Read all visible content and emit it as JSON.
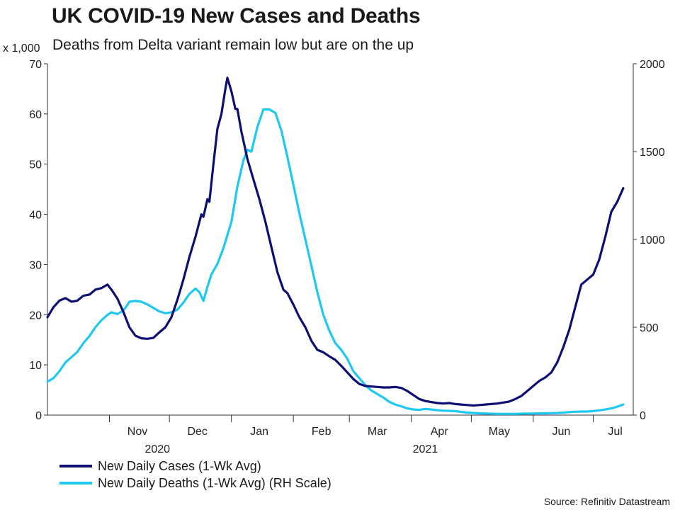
{
  "chart_data": {
    "type": "line",
    "title": "UK COVID-19 New Cases and Deaths",
    "subtitle": "Deaths from Delta variant remain low but are on the up",
    "left_unit": "x 1,000",
    "source": "Source: Refinitiv Datastream",
    "x_start": "2020-10-01",
    "x_end": "2021-07-21",
    "month_labels": [
      "Nov",
      "Dec",
      "Jan",
      "Feb",
      "Mar",
      "Apr",
      "May",
      "Jun",
      "Jul"
    ],
    "month_label_dates": [
      "2020-11-15",
      "2020-12-15",
      "2021-01-15",
      "2021-02-15",
      "2021-03-15",
      "2021-04-15",
      "2021-05-15",
      "2021-06-15",
      "2021-07-12"
    ],
    "month_boundaries": [
      "2020-11-01",
      "2020-12-01",
      "2021-01-01",
      "2021-02-01",
      "2021-03-01",
      "2021-04-01",
      "2021-05-01",
      "2021-06-01",
      "2021-07-01"
    ],
    "year_labels": [
      "2020",
      "2021"
    ],
    "year_label_dates": [
      "2020-11-25",
      "2021-04-08"
    ],
    "y_left": {
      "min": 0,
      "max": 70,
      "ticks": [
        "0",
        "10",
        "20",
        "30",
        "40",
        "50",
        "60",
        "70"
      ]
    },
    "y_right": {
      "min": 0,
      "max": 2000,
      "ticks": [
        "0",
        "500",
        "1000",
        "1500",
        "2000"
      ]
    },
    "series": [
      {
        "name": "New Daily Cases (1-Wk Avg)",
        "axis": "left",
        "color": "#0d0f73",
        "points": [
          [
            "2020-10-01",
            19.5
          ],
          [
            "2020-10-04",
            21.5
          ],
          [
            "2020-10-07",
            22.8
          ],
          [
            "2020-10-10",
            23.3
          ],
          [
            "2020-10-13",
            22.6
          ],
          [
            "2020-10-16",
            22.8
          ],
          [
            "2020-10-19",
            23.8
          ],
          [
            "2020-10-22",
            24.0
          ],
          [
            "2020-10-25",
            25.0
          ],
          [
            "2020-10-28",
            25.3
          ],
          [
            "2020-10-31",
            26.0
          ],
          [
            "2020-11-02",
            25.0
          ],
          [
            "2020-11-05",
            23.2
          ],
          [
            "2020-11-08",
            20.5
          ],
          [
            "2020-11-11",
            17.5
          ],
          [
            "2020-11-14",
            15.8
          ],
          [
            "2020-11-17",
            15.3
          ],
          [
            "2020-11-20",
            15.2
          ],
          [
            "2020-11-23",
            15.4
          ],
          [
            "2020-11-26",
            16.5
          ],
          [
            "2020-11-29",
            17.5
          ],
          [
            "2020-12-02",
            19.5
          ],
          [
            "2020-12-05",
            23.0
          ],
          [
            "2020-12-08",
            27.0
          ],
          [
            "2020-12-11",
            31.5
          ],
          [
            "2020-12-14",
            35.5
          ],
          [
            "2020-12-17",
            40.0
          ],
          [
            "2020-12-18",
            39.5
          ],
          [
            "2020-12-20",
            43.0
          ],
          [
            "2020-12-21",
            42.5
          ],
          [
            "2020-12-23",
            50.0
          ],
          [
            "2020-12-25",
            57.0
          ],
          [
            "2020-12-27",
            60.0
          ],
          [
            "2020-12-29",
            65.0
          ],
          [
            "2020-12-30",
            67.2
          ],
          [
            "2021-01-01",
            64.5
          ],
          [
            "2021-01-03",
            61.0
          ],
          [
            "2021-01-04",
            61.0
          ],
          [
            "2021-01-06",
            56.5
          ],
          [
            "2021-01-09",
            51.0
          ],
          [
            "2021-01-12",
            47.0
          ],
          [
            "2021-01-15",
            43.0
          ],
          [
            "2021-01-18",
            38.5
          ],
          [
            "2021-01-21",
            33.5
          ],
          [
            "2021-01-24",
            28.5
          ],
          [
            "2021-01-27",
            25.0
          ],
          [
            "2021-01-29",
            24.3
          ],
          [
            "2021-02-01",
            22.0
          ],
          [
            "2021-02-04",
            19.5
          ],
          [
            "2021-02-07",
            17.5
          ],
          [
            "2021-02-10",
            14.8
          ],
          [
            "2021-02-13",
            13.0
          ],
          [
            "2021-02-16",
            12.5
          ],
          [
            "2021-02-19",
            11.7
          ],
          [
            "2021-02-22",
            11.0
          ],
          [
            "2021-02-25",
            9.8
          ],
          [
            "2021-02-28",
            8.5
          ],
          [
            "2021-03-03",
            7.2
          ],
          [
            "2021-03-06",
            6.2
          ],
          [
            "2021-03-09",
            5.8
          ],
          [
            "2021-03-12",
            5.7
          ],
          [
            "2021-03-15",
            5.6
          ],
          [
            "2021-03-18",
            5.5
          ],
          [
            "2021-03-21",
            5.5
          ],
          [
            "2021-03-24",
            5.6
          ],
          [
            "2021-03-27",
            5.4
          ],
          [
            "2021-03-30",
            4.8
          ],
          [
            "2021-04-02",
            4.0
          ],
          [
            "2021-04-05",
            3.2
          ],
          [
            "2021-04-08",
            2.8
          ],
          [
            "2021-04-11",
            2.6
          ],
          [
            "2021-04-14",
            2.4
          ],
          [
            "2021-04-17",
            2.3
          ],
          [
            "2021-04-20",
            2.4
          ],
          [
            "2021-04-23",
            2.2
          ],
          [
            "2021-04-26",
            2.1
          ],
          [
            "2021-04-29",
            2.0
          ],
          [
            "2021-05-02",
            1.9
          ],
          [
            "2021-05-05",
            2.0
          ],
          [
            "2021-05-08",
            2.1
          ],
          [
            "2021-05-11",
            2.2
          ],
          [
            "2021-05-14",
            2.3
          ],
          [
            "2021-05-17",
            2.5
          ],
          [
            "2021-05-20",
            2.7
          ],
          [
            "2021-05-23",
            3.2
          ],
          [
            "2021-05-26",
            3.8
          ],
          [
            "2021-05-29",
            4.8
          ],
          [
            "2021-06-01",
            5.8
          ],
          [
            "2021-06-04",
            6.8
          ],
          [
            "2021-06-07",
            7.5
          ],
          [
            "2021-06-10",
            8.5
          ],
          [
            "2021-06-13",
            10.5
          ],
          [
            "2021-06-16",
            13.5
          ],
          [
            "2021-06-19",
            17.0
          ],
          [
            "2021-06-22",
            21.5
          ],
          [
            "2021-06-25",
            26.0
          ],
          [
            "2021-06-28",
            27.0
          ],
          [
            "2021-07-01",
            28.0
          ],
          [
            "2021-07-04",
            31.0
          ],
          [
            "2021-07-07",
            35.5
          ],
          [
            "2021-07-10",
            40.5
          ],
          [
            "2021-07-13",
            42.5
          ],
          [
            "2021-07-16",
            45.2
          ]
        ]
      },
      {
        "name": "New Daily Deaths (1-Wk Avg) (RH Scale)",
        "axis": "right",
        "color": "#1ec8f0",
        "points": [
          [
            "2020-10-01",
            190
          ],
          [
            "2020-10-04",
            210
          ],
          [
            "2020-10-07",
            250
          ],
          [
            "2020-10-10",
            300
          ],
          [
            "2020-10-13",
            330
          ],
          [
            "2020-10-16",
            360
          ],
          [
            "2020-10-19",
            410
          ],
          [
            "2020-10-22",
            450
          ],
          [
            "2020-10-25",
            500
          ],
          [
            "2020-10-28",
            540
          ],
          [
            "2020-10-31",
            570
          ],
          [
            "2020-11-02",
            585
          ],
          [
            "2020-11-05",
            575
          ],
          [
            "2020-11-08",
            595
          ],
          [
            "2020-11-11",
            645
          ],
          [
            "2020-11-14",
            650
          ],
          [
            "2020-11-17",
            645
          ],
          [
            "2020-11-20",
            630
          ],
          [
            "2020-11-23",
            610
          ],
          [
            "2020-11-26",
            590
          ],
          [
            "2020-11-29",
            580
          ],
          [
            "2020-12-02",
            585
          ],
          [
            "2020-12-05",
            600
          ],
          [
            "2020-12-08",
            640
          ],
          [
            "2020-12-11",
            690
          ],
          [
            "2020-12-14",
            720
          ],
          [
            "2020-12-16",
            700
          ],
          [
            "2020-12-18",
            650
          ],
          [
            "2020-12-20",
            730
          ],
          [
            "2020-12-22",
            800
          ],
          [
            "2020-12-25",
            860
          ],
          [
            "2020-12-28",
            950
          ],
          [
            "2021-01-01",
            1100
          ],
          [
            "2021-01-04",
            1300
          ],
          [
            "2021-01-07",
            1450
          ],
          [
            "2021-01-09",
            1510
          ],
          [
            "2021-01-11",
            1500
          ],
          [
            "2021-01-14",
            1640
          ],
          [
            "2021-01-17",
            1740
          ],
          [
            "2021-01-20",
            1740
          ],
          [
            "2021-01-23",
            1720
          ],
          [
            "2021-01-26",
            1620
          ],
          [
            "2021-01-29",
            1470
          ],
          [
            "2021-02-01",
            1310
          ],
          [
            "2021-02-04",
            1150
          ],
          [
            "2021-02-07",
            1000
          ],
          [
            "2021-02-10",
            850
          ],
          [
            "2021-02-13",
            700
          ],
          [
            "2021-02-16",
            570
          ],
          [
            "2021-02-19",
            480
          ],
          [
            "2021-02-22",
            410
          ],
          [
            "2021-02-25",
            370
          ],
          [
            "2021-02-28",
            320
          ],
          [
            "2021-03-03",
            250
          ],
          [
            "2021-03-06",
            210
          ],
          [
            "2021-03-09",
            170
          ],
          [
            "2021-03-12",
            140
          ],
          [
            "2021-03-15",
            120
          ],
          [
            "2021-03-18",
            100
          ],
          [
            "2021-03-21",
            75
          ],
          [
            "2021-03-24",
            60
          ],
          [
            "2021-03-27",
            50
          ],
          [
            "2021-03-30",
            38
          ],
          [
            "2021-04-02",
            32
          ],
          [
            "2021-04-05",
            30
          ],
          [
            "2021-04-08",
            35
          ],
          [
            "2021-04-11",
            32
          ],
          [
            "2021-04-14",
            28
          ],
          [
            "2021-04-17",
            25
          ],
          [
            "2021-04-20",
            24
          ],
          [
            "2021-04-23",
            22
          ],
          [
            "2021-04-26",
            18
          ],
          [
            "2021-04-29",
            14
          ],
          [
            "2021-05-02",
            12
          ],
          [
            "2021-05-05",
            10
          ],
          [
            "2021-05-08",
            9
          ],
          [
            "2021-05-11",
            8
          ],
          [
            "2021-05-14",
            7
          ],
          [
            "2021-05-17",
            7
          ],
          [
            "2021-05-20",
            7
          ],
          [
            "2021-05-23",
            7
          ],
          [
            "2021-05-26",
            8
          ],
          [
            "2021-05-29",
            9
          ],
          [
            "2021-06-01",
            9
          ],
          [
            "2021-06-04",
            10
          ],
          [
            "2021-06-07",
            10
          ],
          [
            "2021-06-10",
            11
          ],
          [
            "2021-06-13",
            12
          ],
          [
            "2021-06-16",
            14
          ],
          [
            "2021-06-19",
            17
          ],
          [
            "2021-06-22",
            19
          ],
          [
            "2021-06-25",
            20
          ],
          [
            "2021-06-28",
            20
          ],
          [
            "2021-07-01",
            23
          ],
          [
            "2021-07-04",
            27
          ],
          [
            "2021-07-07",
            32
          ],
          [
            "2021-07-10",
            38
          ],
          [
            "2021-07-13",
            48
          ],
          [
            "2021-07-16",
            60
          ]
        ]
      }
    ]
  }
}
